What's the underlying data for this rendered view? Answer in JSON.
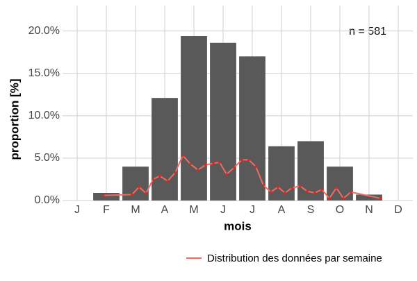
{
  "chart_data": {
    "type": "bar",
    "x_label": "mois",
    "y_label": "proportion [%]",
    "annotation": "n = 581",
    "categories": [
      "J",
      "F",
      "M",
      "A",
      "M",
      "J",
      "J",
      "A",
      "S",
      "O",
      "N",
      "D"
    ],
    "values": [
      0,
      0.9,
      4.0,
      12.1,
      19.4,
      18.6,
      17.0,
      6.4,
      7.0,
      4.0,
      0.7,
      0
    ],
    "color": "#595959",
    "ylim": [
      0,
      23
    ],
    "yticks": [
      {
        "value": 0,
        "label": "0.0%"
      },
      {
        "value": 5,
        "label": "5.0%"
      },
      {
        "value": 10,
        "label": "10.0%"
      },
      {
        "value": 15,
        "label": "15.0%"
      },
      {
        "value": 20,
        "label": "20.0%"
      }
    ],
    "grid": true,
    "legend": "bottom",
    "series": [
      {
        "name": "Distribution des données par semaine",
        "type": "line",
        "color": "#f26a60",
        "point_color": "#e3261b",
        "x": [
          0.9,
          1.88,
          2.12,
          2.36,
          2.6,
          2.83,
          3.1,
          3.36,
          3.62,
          3.88,
          4.14,
          4.4,
          4.67,
          4.88,
          5.12,
          5.38,
          5.64,
          5.88,
          6.12,
          6.38,
          6.64,
          6.88,
          7.12,
          7.36,
          7.64,
          7.88,
          8.14,
          8.38,
          8.64,
          8.88,
          9.12,
          9.38,
          10.4
        ],
        "values": [
          0.6,
          0.7,
          1.6,
          0.85,
          2.5,
          2.9,
          2.3,
          3.3,
          5.3,
          4.3,
          3.6,
          4.2,
          4.4,
          4.5,
          3.1,
          3.9,
          4.8,
          4.8,
          4.0,
          1.8,
          1.0,
          1.6,
          0.9,
          1.5,
          1.7,
          1.1,
          0.9,
          1.3,
          0.25,
          1.5,
          0.25,
          1.0,
          0.25
        ]
      }
    ]
  }
}
